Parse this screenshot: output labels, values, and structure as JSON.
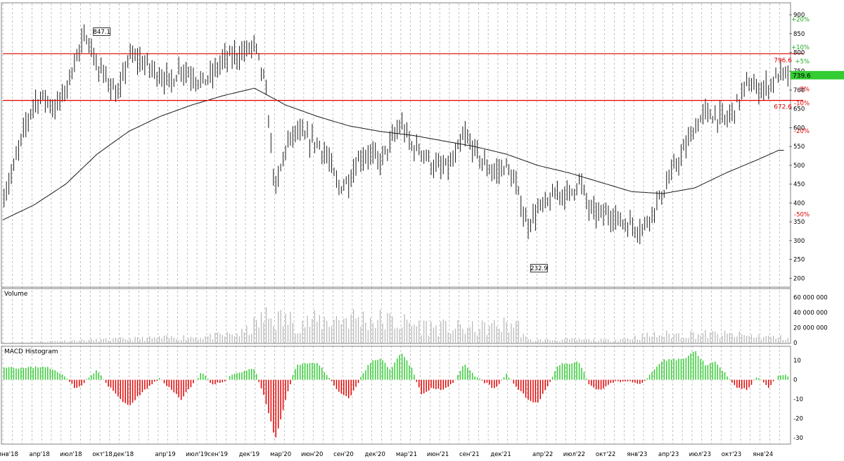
{
  "chart_data": [
    {
      "type": "candlestick",
      "panel": "price",
      "title": "",
      "y_ticks": [
        200,
        250,
        300,
        350,
        400,
        450,
        500,
        550,
        600,
        650,
        700,
        750,
        800,
        850,
        900
      ],
      "ylim": [
        180,
        930
      ],
      "last_price": "739.6",
      "last_price_color": "#33cc33",
      "max_label": "847.1",
      "min_label": "232.9",
      "resistance": {
        "value": 796.6,
        "label": "796.6",
        "color": "#e00000"
      },
      "support": {
        "value": 672.6,
        "label": "672.6",
        "color": "#e00000"
      },
      "pct_levels": [
        {
          "label": "+20%",
          "value": 887.5,
          "color": "#22aa22"
        },
        {
          "label": "+10%",
          "value": 813.6,
          "color": "#22aa22"
        },
        {
          "label": "+5%",
          "value": 776.6,
          "color": "#22aa22"
        },
        {
          "label": "-5%",
          "value": 702.6,
          "color": "#e00000"
        },
        {
          "label": "-10%",
          "value": 665.6,
          "color": "#e00000"
        },
        {
          "label": "-20%",
          "value": 591.7,
          "color": "#e00000"
        },
        {
          "label": "-50%",
          "value": 369.8,
          "color": "#e00000"
        }
      ],
      "price_path": [
        [
          "2018-01",
          410
        ],
        [
          "2018-02",
          490
        ],
        [
          "2018-03",
          590
        ],
        [
          "2018-04",
          670
        ],
        [
          "2018-05",
          680
        ],
        [
          "2018-06",
          650
        ],
        [
          "2018-07",
          700
        ],
        [
          "2018-08",
          790
        ],
        [
          "2018-09",
          847
        ],
        [
          "2018-10",
          760
        ],
        [
          "2018-11",
          730
        ],
        [
          "2018-12",
          680
        ],
        [
          "2019-01",
          790
        ],
        [
          "2019-02",
          780
        ],
        [
          "2019-03",
          760
        ],
        [
          "2019-04",
          740
        ],
        [
          "2019-05",
          720
        ],
        [
          "2019-06",
          760
        ],
        [
          "2019-07",
          740
        ],
        [
          "2019-08",
          720
        ],
        [
          "2019-09",
          740
        ],
        [
          "2019-10",
          780
        ],
        [
          "2019-11",
          790
        ],
        [
          "2019-12",
          800
        ],
        [
          "2020-01",
          820
        ],
        [
          "2020-02",
          720
        ],
        [
          "2020-03",
          430
        ],
        [
          "2020-04",
          550
        ],
        [
          "2020-05",
          590
        ],
        [
          "2020-06",
          570
        ],
        [
          "2020-07",
          560
        ],
        [
          "2020-08",
          520
        ],
        [
          "2020-09",
          440
        ],
        [
          "2020-10",
          460
        ],
        [
          "2020-11",
          520
        ],
        [
          "2020-12",
          530
        ],
        [
          "2021-01",
          510
        ],
        [
          "2021-02",
          560
        ],
        [
          "2021-03",
          610
        ],
        [
          "2021-04",
          550
        ],
        [
          "2021-05",
          540
        ],
        [
          "2021-06",
          500
        ],
        [
          "2021-07",
          490
        ],
        [
          "2021-08",
          510
        ],
        [
          "2021-09",
          580
        ],
        [
          "2021-10",
          540
        ],
        [
          "2021-11",
          500
        ],
        [
          "2021-12",
          480
        ],
        [
          "2022-01",
          500
        ],
        [
          "2022-02",
          440
        ],
        [
          "2022-03",
          340
        ],
        [
          "2022-04",
          380
        ],
        [
          "2022-05",
          400
        ],
        [
          "2022-06",
          430
        ],
        [
          "2022-07",
          420
        ],
        [
          "2022-08",
          460
        ],
        [
          "2022-09",
          380
        ],
        [
          "2022-10",
          370
        ],
        [
          "2022-11",
          370
        ],
        [
          "2022-12",
          350
        ],
        [
          "2023-01",
          340
        ],
        [
          "2023-02",
          330
        ],
        [
          "2023-03",
          380
        ],
        [
          "2023-04",
          430
        ],
        [
          "2023-05",
          490
        ],
        [
          "2023-06",
          540
        ],
        [
          "2023-07",
          600
        ],
        [
          "2023-08",
          640
        ],
        [
          "2023-09",
          630
        ],
        [
          "2023-10",
          620
        ],
        [
          "2023-11",
          660
        ],
        [
          "2023-12",
          720
        ],
        [
          "2024-01",
          700
        ],
        [
          "2024-02",
          710
        ],
        [
          "2024-03",
          740
        ]
      ],
      "moving_average": [
        [
          "2018-01",
          355
        ],
        [
          "2018-04",
          395
        ],
        [
          "2018-07",
          450
        ],
        [
          "2018-10",
          530
        ],
        [
          "2019-01",
          590
        ],
        [
          "2019-04",
          630
        ],
        [
          "2019-07",
          660
        ],
        [
          "2019-10",
          685
        ],
        [
          "2020-01",
          705
        ],
        [
          "2020-04",
          660
        ],
        [
          "2020-07",
          630
        ],
        [
          "2020-10",
          605
        ],
        [
          "2021-01",
          590
        ],
        [
          "2021-04",
          580
        ],
        [
          "2021-07",
          565
        ],
        [
          "2021-10",
          550
        ],
        [
          "2022-01",
          530
        ],
        [
          "2022-04",
          500
        ],
        [
          "2022-07",
          480
        ],
        [
          "2022-10",
          455
        ],
        [
          "2023-01",
          430
        ],
        [
          "2023-04",
          425
        ],
        [
          "2023-07",
          440
        ],
        [
          "2023-10",
          480
        ],
        [
          "2024-01",
          515
        ],
        [
          "2024-03",
          540
        ]
      ]
    },
    {
      "type": "bar",
      "panel": "volume",
      "title": "Volume",
      "y_ticks": [
        "0",
        "20 000 000",
        "40 000 000",
        "60 000 000"
      ],
      "ylim": [
        0,
        70000000
      ],
      "monthly_level": [
        [
          "2018-01",
          0
        ],
        [
          "2019-09",
          10000000
        ],
        [
          "2019-12",
          15000000
        ],
        [
          "2020-02",
          40000000
        ],
        [
          "2020-06",
          32000000
        ],
        [
          "2020-10",
          40000000
        ],
        [
          "2021-01",
          36000000
        ],
        [
          "2021-06",
          25000000
        ],
        [
          "2021-10",
          22000000
        ],
        [
          "2022-02",
          30000000
        ],
        [
          "2022-03",
          4000000
        ],
        [
          "2022-07",
          5000000
        ],
        [
          "2022-11",
          4000000
        ],
        [
          "2023-03",
          12000000
        ],
        [
          "2023-07",
          14000000
        ],
        [
          "2023-11",
          12000000
        ],
        [
          "2024-03",
          8000000
        ]
      ]
    },
    {
      "type": "histogram",
      "panel": "macd",
      "title": "MACD Histogram",
      "y_ticks": [
        "-30",
        "-20",
        "-10",
        "0",
        "10"
      ],
      "ylim": [
        -33,
        17
      ],
      "positive_color": "#33cc33",
      "negative_color": "#e00000",
      "path": [
        [
          "2018-01",
          7
        ],
        [
          "2018-03",
          6
        ],
        [
          "2018-05",
          7
        ],
        [
          "2018-07",
          2
        ],
        [
          "2018-08",
          -5
        ],
        [
          "2018-10",
          5
        ],
        [
          "2018-11",
          -3
        ],
        [
          "2019-01",
          -14
        ],
        [
          "2019-02",
          -8
        ],
        [
          "2019-04",
          1
        ],
        [
          "2019-05",
          -5
        ],
        [
          "2019-06",
          -10
        ],
        [
          "2019-08",
          4
        ],
        [
          "2019-09",
          -3
        ],
        [
          "2019-10",
          -1
        ],
        [
          "2019-11",
          3
        ],
        [
          "2020-01",
          6
        ],
        [
          "2020-02",
          -10
        ],
        [
          "2020-03",
          -31
        ],
        [
          "2020-04",
          -10
        ],
        [
          "2020-05",
          8
        ],
        [
          "2020-07",
          9
        ],
        [
          "2020-09",
          -6
        ],
        [
          "2020-10",
          -10
        ],
        [
          "2020-12",
          9
        ],
        [
          "2021-01",
          11
        ],
        [
          "2021-02",
          5
        ],
        [
          "2021-03",
          14
        ],
        [
          "2021-04",
          6
        ],
        [
          "2021-05",
          -8
        ],
        [
          "2021-06",
          -4
        ],
        [
          "2021-07",
          -5
        ],
        [
          "2021-08",
          -2
        ],
        [
          "2021-09",
          8
        ],
        [
          "2021-10",
          2
        ],
        [
          "2021-12",
          -5
        ],
        [
          "2022-01",
          3
        ],
        [
          "2022-03",
          -10
        ],
        [
          "2022-04",
          -12
        ],
        [
          "2022-05",
          -3
        ],
        [
          "2022-06",
          8
        ],
        [
          "2022-08",
          9
        ],
        [
          "2022-09",
          -3
        ],
        [
          "2022-10",
          -6
        ],
        [
          "2022-11",
          -1
        ],
        [
          "2023-01",
          -1
        ],
        [
          "2023-02",
          -2
        ],
        [
          "2023-03",
          4
        ],
        [
          "2023-04",
          10
        ],
        [
          "2023-06",
          11
        ],
        [
          "2023-07",
          15
        ],
        [
          "2023-08",
          8
        ],
        [
          "2023-09",
          9
        ],
        [
          "2023-10",
          3
        ],
        [
          "2023-11",
          -4
        ],
        [
          "2023-12",
          -5
        ],
        [
          "2024-01",
          2
        ],
        [
          "2024-02",
          -4
        ],
        [
          "2024-03",
          2
        ]
      ]
    }
  ],
  "x_axis": {
    "labels": [
      {
        "text": "янв'18",
        "month": "2018-01"
      },
      {
        "text": "апр'18",
        "month": "2018-04"
      },
      {
        "text": "июл'18",
        "month": "2018-07"
      },
      {
        "text": "окт'18",
        "month": "2018-10"
      },
      {
        "text": "дек'18",
        "month": "2018-12"
      },
      {
        "text": "апр'19",
        "month": "2019-04"
      },
      {
        "text": "июл'19",
        "month": "2019-07"
      },
      {
        "text": "сен'19",
        "month": "2019-09"
      },
      {
        "text": "дек'19",
        "month": "2019-12"
      },
      {
        "text": "мар'20",
        "month": "2020-03"
      },
      {
        "text": "июн'20",
        "month": "2020-06"
      },
      {
        "text": "сен'20",
        "month": "2020-09"
      },
      {
        "text": "дек'20",
        "month": "2020-12"
      },
      {
        "text": "мар'21",
        "month": "2021-03"
      },
      {
        "text": "июн'21",
        "month": "2021-06"
      },
      {
        "text": "сен'21",
        "month": "2021-09"
      },
      {
        "text": "дек'21",
        "month": "2021-12"
      },
      {
        "text": "апр'22",
        "month": "2022-04"
      },
      {
        "text": "июл'22",
        "month": "2022-07"
      },
      {
        "text": "окт'22",
        "month": "2022-10"
      },
      {
        "text": "янв'23",
        "month": "2023-01"
      },
      {
        "text": "апр'23",
        "month": "2023-04"
      },
      {
        "text": "июл'23",
        "month": "2023-07"
      },
      {
        "text": "окт'23",
        "month": "2023-10"
      },
      {
        "text": "янв'24",
        "month": "2024-01"
      }
    ],
    "range": [
      "2018-01",
      "2024-03"
    ]
  },
  "colors": {
    "candle": "#1a1a1a",
    "moving_average": "#1a1a1a",
    "volume": "#b4b4b4",
    "grid": "#9a9a9a",
    "axis_text": "#000000"
  }
}
